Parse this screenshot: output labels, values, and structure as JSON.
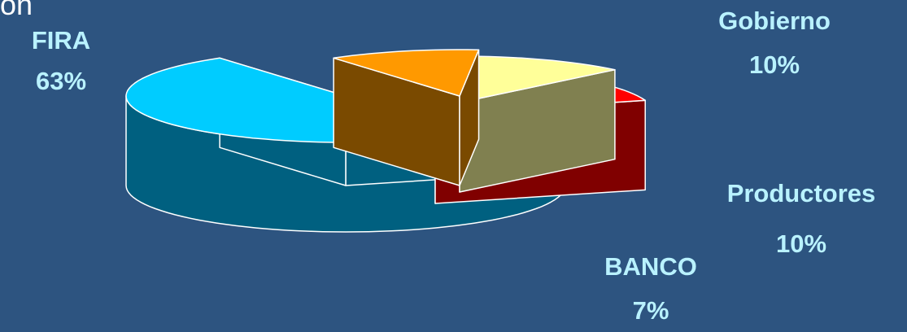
{
  "corner_text": "ón",
  "chart_data": {
    "type": "pie",
    "style": "3d-exploded",
    "slices": [
      {
        "label": "FIRA",
        "value": 63,
        "pct_label": "63%",
        "color": "#00ccff",
        "side_color": "#006080"
      },
      {
        "label": "Gobierno",
        "value": 10,
        "pct_label": "10%",
        "color": "#ff9900",
        "side_color": "#7a4a00"
      },
      {
        "label": "Productores",
        "value": 10,
        "pct_label": "10%",
        "color": "#ffff99",
        "side_color": "#808050"
      },
      {
        "label": "BANCO",
        "value": 7,
        "pct_label": "7%",
        "color": "#ff0000",
        "side_color": "#800000"
      }
    ],
    "title": "",
    "legend": "none",
    "data_labels": "name and percent outside slices"
  }
}
